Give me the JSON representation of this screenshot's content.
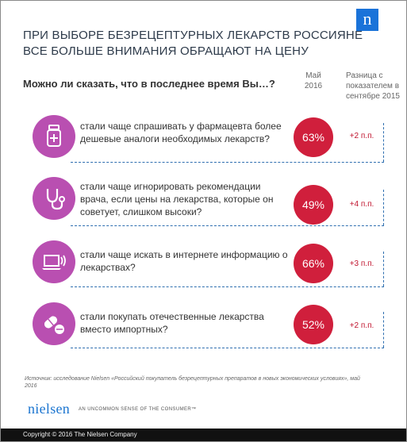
{
  "header": {
    "logo_glyph": "n",
    "title_line1": "ПРИ ВЫБОРЕ БЕЗРЕЦЕПТУРНЫХ ЛЕКАРСТВ РОССИЯНЕ",
    "title_line2": "ВСЕ БОЛЬШЕ ВНИМАНИЯ ОБРАЩАЮТ НА ЦЕНУ"
  },
  "question": "Можно ли сказать, что в последнее время Вы…?",
  "columns": {
    "may_line1": "Май",
    "may_line2": "2016",
    "diff": "Разница с показателем в сентябре 2015"
  },
  "rows": [
    {
      "icon": "pill-bottle-icon",
      "text": "стали чаще спрашивать у фармацевта более дешевые аналоги необходимых лекарств?",
      "percent": "63%",
      "diff": "+2 п.п."
    },
    {
      "icon": "stethoscope-icon",
      "text": "стали чаще игнорировать рекомендации врача, если цены на лекарства, которые он советует, слишком высоки?",
      "percent": "49%",
      "diff": "+4 п.п."
    },
    {
      "icon": "laptop-icon",
      "text": "стали чаще искать в интернете информацию о лекарствах?",
      "percent": "66%",
      "diff": "+3 п.п."
    },
    {
      "icon": "pills-icon",
      "text": "стали покупать отечественные лекарства вместо импортных?",
      "percent": "52%",
      "diff": "+2 п.п."
    }
  ],
  "source": "Источник: исследование Nielsen «Российский покупатель безрецептурных препаратов в новых экономических условиях», май 2016",
  "brand": {
    "logo_text": "nielsen",
    "tagline": "AN UNCOMMON SENSE OF THE CONSUMER™"
  },
  "footer": "Copyright © 2016 The Nielsen Company",
  "colors": {
    "accent_purple": "#b94fb1",
    "percent_red": "#d01f3c",
    "brand_blue": "#1a73d9",
    "dash_blue": "#2f6fb0"
  }
}
